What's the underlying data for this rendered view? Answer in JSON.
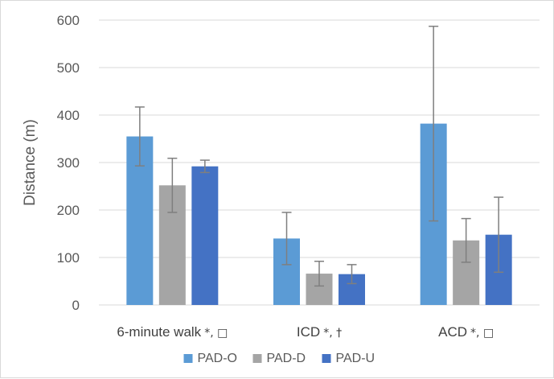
{
  "chart_data": {
    "type": "bar",
    "ylabel": "Distance (m)",
    "xlabel": "",
    "ylim": [
      0,
      600
    ],
    "yticks": [
      0,
      100,
      200,
      300,
      400,
      500,
      600
    ],
    "grid": true,
    "legend_position": "bottom",
    "categories": [
      "6-minute walk",
      "ICD",
      "ACD"
    ],
    "category_markers": [
      "*, □",
      "*, †",
      "*, □"
    ],
    "series": [
      {
        "name": "PAD-O",
        "color": "#5b9bd5",
        "values": [
          355,
          140,
          382
        ],
        "errors": [
          62,
          55,
          205
        ]
      },
      {
        "name": "PAD-D",
        "color": "#a5a5a5",
        "values": [
          252,
          66,
          136
        ],
        "errors": [
          57,
          26,
          46
        ]
      },
      {
        "name": "PAD-U",
        "color": "#4472c4",
        "values": [
          292,
          65,
          148
        ],
        "errors": [
          13,
          20,
          79
        ]
      }
    ]
  }
}
